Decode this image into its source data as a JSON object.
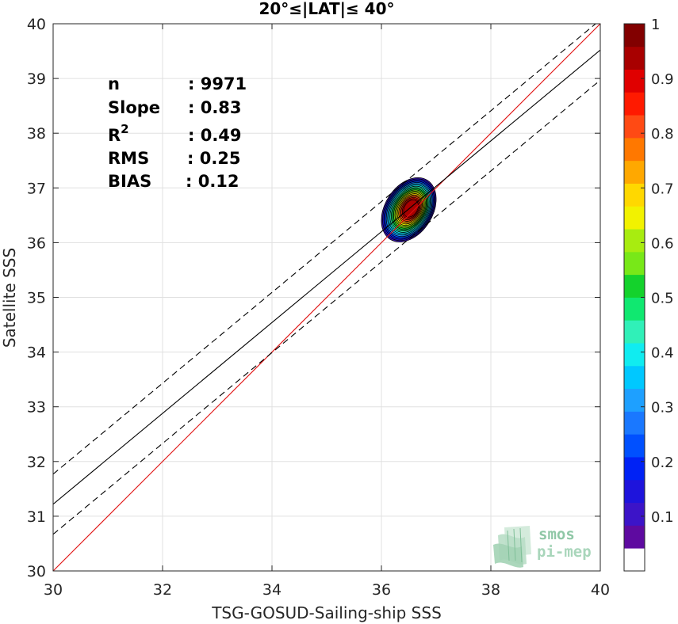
{
  "chart_data": {
    "type": "scatter",
    "title": "20°≤|LAT|≤ 40°",
    "xlabel": "TSG-GOSUD-Sailing-ship SSS",
    "ylabel": "Satellite SSS",
    "xlim": [
      30,
      40
    ],
    "ylim": [
      30,
      40
    ],
    "xticks": [
      "30",
      "32",
      "34",
      "36",
      "38",
      "40"
    ],
    "yticks": [
      "30",
      "31",
      "32",
      "33",
      "34",
      "35",
      "36",
      "37",
      "38",
      "39",
      "40"
    ],
    "grid": true,
    "density_center": {
      "x": 36.5,
      "y": 36.6
    },
    "density_levels": [
      0.05,
      0.1,
      0.15,
      0.2,
      0.25,
      0.3,
      0.35,
      0.4,
      0.45,
      0.5,
      0.55,
      0.6,
      0.65,
      0.7,
      0.75,
      0.8,
      0.85,
      0.9,
      0.95
    ],
    "fit_line": {
      "x": [
        30,
        40
      ],
      "y": [
        31.22,
        39.52
      ]
    },
    "fit_upper": {
      "x": [
        30,
        40
      ],
      "y": [
        31.77,
        40.07
      ]
    },
    "fit_lower": {
      "x": [
        30,
        40
      ],
      "y": [
        30.67,
        38.97
      ]
    },
    "identity_line": {
      "x": [
        30,
        40
      ],
      "y": [
        30,
        40
      ]
    },
    "colors": {
      "fit": "#000000",
      "identity": "#e01010"
    },
    "stats": [
      {
        "label": "n",
        "value": ": 9971"
      },
      {
        "label": "Slope",
        "value": ": 0.83"
      },
      {
        "label": "R",
        "sup": "2",
        "value": ": 0.49"
      },
      {
        "label": "RMS",
        "value": ": 0.25"
      },
      {
        "label": "BIAS",
        "value": ": 0.12"
      }
    ],
    "colorbar": {
      "ticks": [
        "0.1",
        "0.2",
        "0.3",
        "0.4",
        "0.5",
        "0.6",
        "0.7",
        "0.8",
        "0.9",
        "1"
      ],
      "colors": [
        "#ffffff",
        "#5e0aa0",
        "#3c14c8",
        "#1e14dc",
        "#0022f5",
        "#0050ff",
        "#1a78ff",
        "#1ea0ff",
        "#00c8ff",
        "#10ecf0",
        "#30f0b8",
        "#10e870",
        "#14d22c",
        "#78e818",
        "#a8ec10",
        "#f2f200",
        "#ffd800",
        "#ffa800",
        "#ff7800",
        "#ff4a14",
        "#ff1a00",
        "#e00000",
        "#a80000",
        "#820000"
      ]
    }
  },
  "logo": {
    "line1": "smos",
    "line2": "pi-mep"
  }
}
